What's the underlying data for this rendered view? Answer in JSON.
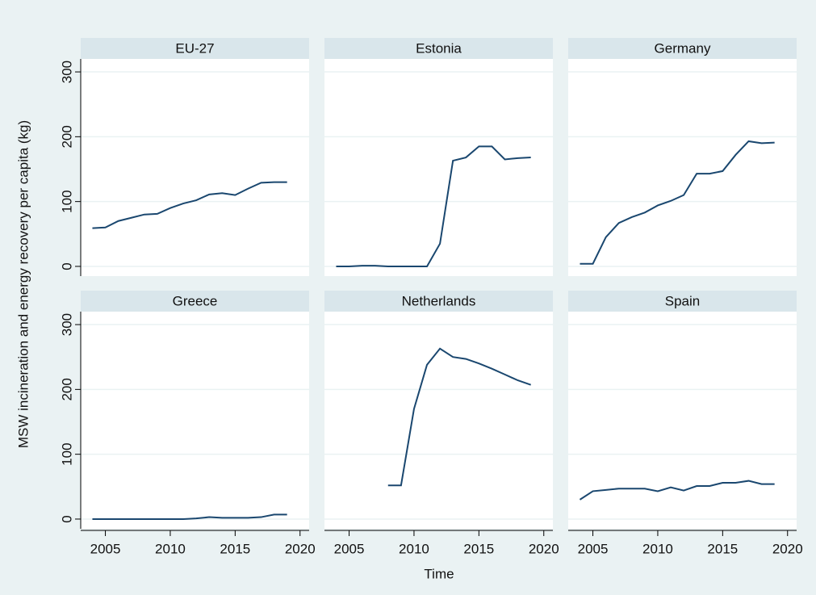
{
  "chart_data": {
    "type": "line",
    "y_label": "MSW incineration and energy recovery per capita (kg)",
    "x_label": "Time",
    "x": [
      2004,
      2005,
      2006,
      2007,
      2008,
      2009,
      2010,
      2011,
      2012,
      2013,
      2014,
      2015,
      2016,
      2017,
      2018,
      2019
    ],
    "xlim": [
      2003.1,
      2020.7
    ],
    "xticks": [
      2005,
      2010,
      2015,
      2020
    ],
    "ylim": [
      -15,
      320
    ],
    "yticks": [
      0,
      100,
      200,
      300
    ],
    "grid": true,
    "color": "#1a476f",
    "panels": [
      {
        "title": "EU-27",
        "values": [
          59,
          60,
          70,
          75,
          80,
          81,
          90,
          97,
          102,
          111,
          113,
          110,
          120,
          129,
          130,
          130
        ]
      },
      {
        "title": "Estonia",
        "values": [
          0,
          0,
          1,
          1,
          0,
          0,
          0,
          0,
          35,
          163,
          168,
          185,
          185,
          165,
          167,
          168
        ]
      },
      {
        "title": "Germany",
        "values": [
          4,
          4,
          45,
          67,
          76,
          83,
          94,
          101,
          110,
          143,
          143,
          147,
          172,
          193,
          190,
          191
        ]
      },
      {
        "title": "Greece",
        "values": [
          0,
          0,
          0,
          0,
          0,
          0,
          0,
          0,
          1,
          3,
          2,
          2,
          2,
          3,
          7,
          7
        ]
      },
      {
        "title": "Netherlands",
        "values": [
          null,
          null,
          null,
          null,
          52,
          52,
          170,
          238,
          263,
          250,
          247,
          240,
          232,
          223,
          214,
          207
        ]
      },
      {
        "title": "Spain",
        "values": [
          30,
          43,
          45,
          47,
          47,
          47,
          43,
          49,
          44,
          51,
          51,
          56,
          56,
          59,
          54,
          54
        ]
      }
    ]
  }
}
